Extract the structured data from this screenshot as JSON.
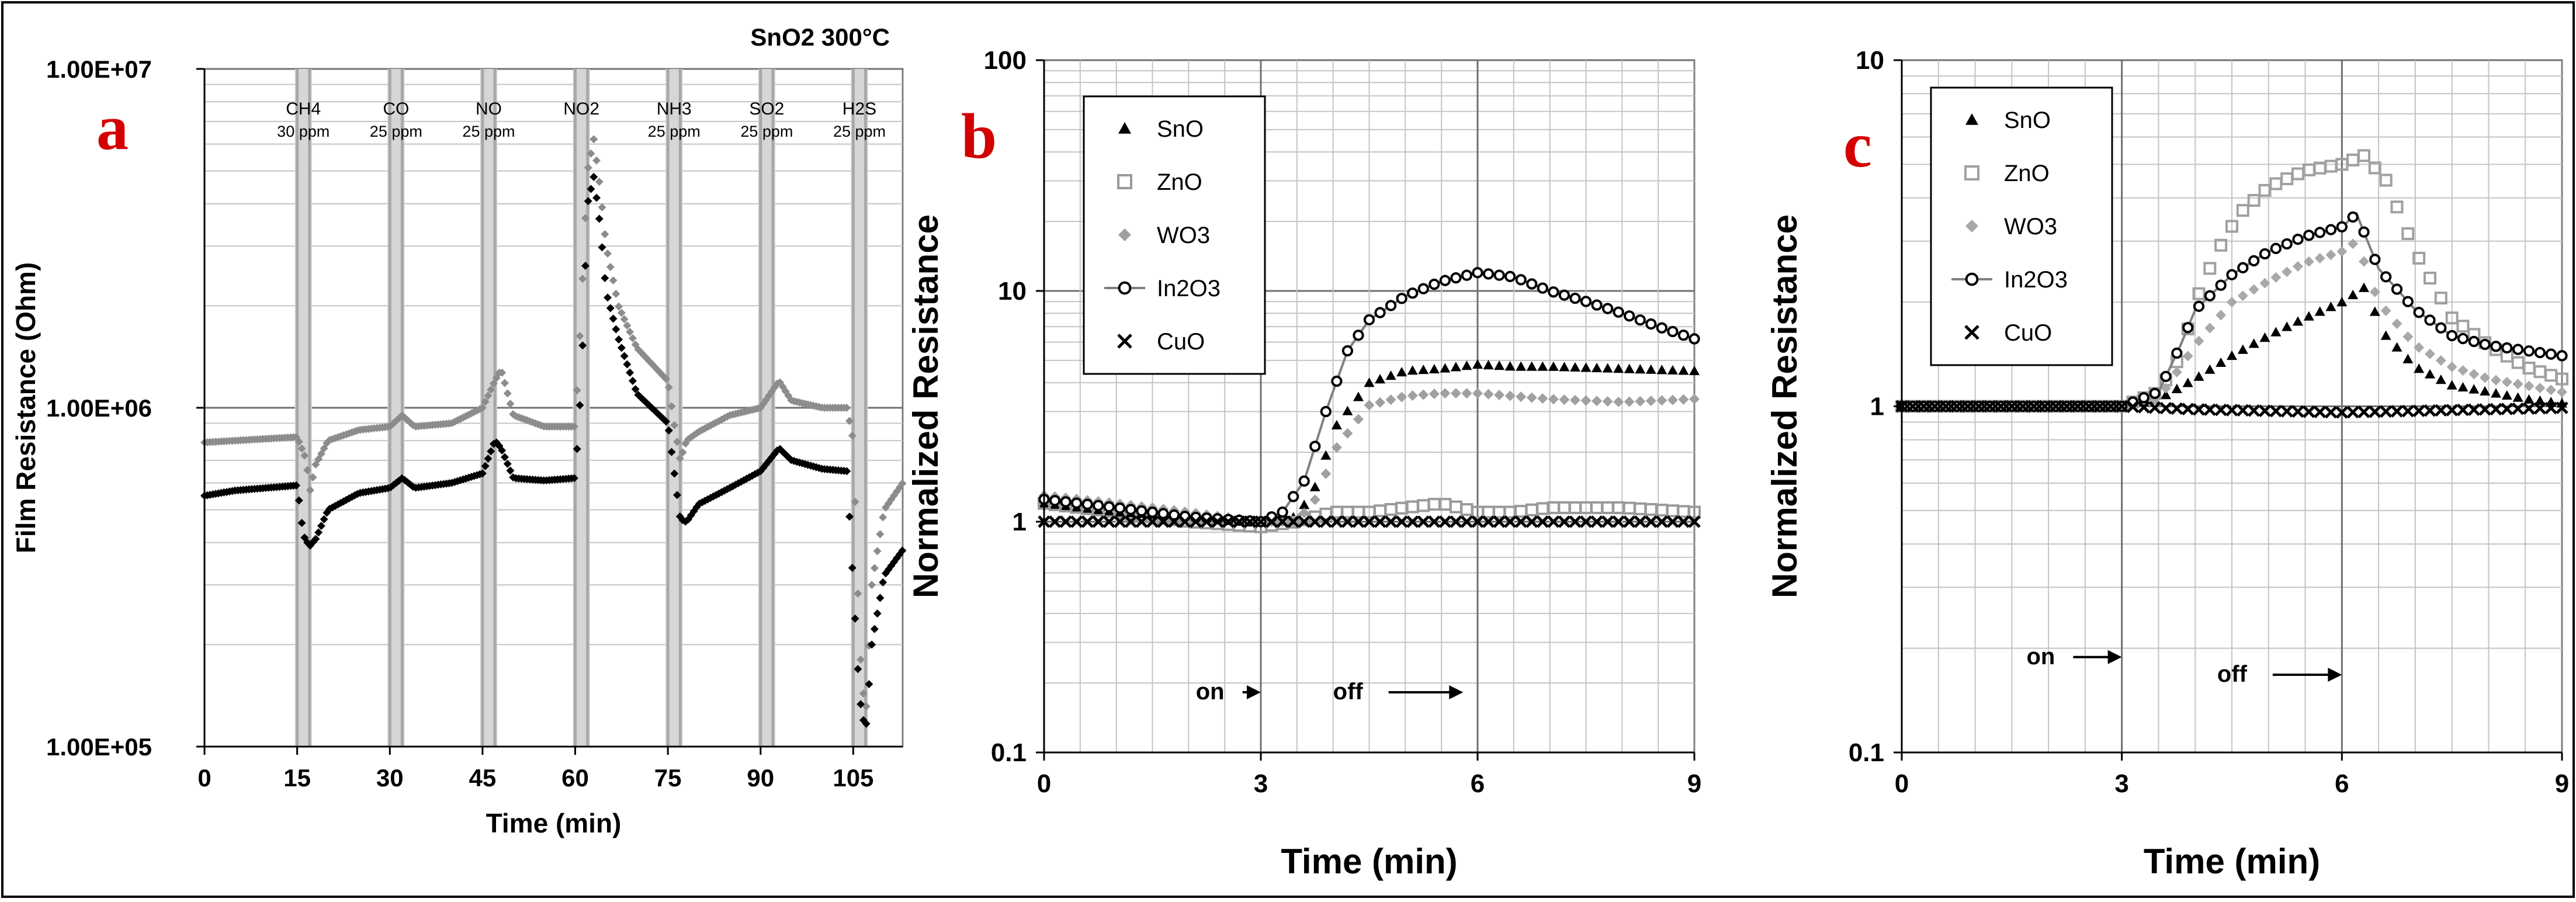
{
  "chart_data": [
    {
      "panel": "a",
      "type": "scatter",
      "title": "SnO2  300°C",
      "xlabel": "Time (min)",
      "ylabel": "Film Resistance (Ohm)",
      "xlim": [
        0,
        113
      ],
      "ylim": [
        100000,
        10000000
      ],
      "yscale": "log",
      "xticks": [
        0,
        15,
        30,
        45,
        60,
        75,
        90,
        105
      ],
      "xtick_labels": [
        "0",
        "15",
        "30",
        "45",
        "60",
        "75",
        "90",
        "105"
      ],
      "yticks": [
        100000,
        1000000,
        10000000
      ],
      "ytick_labels": [
        "1.00E+05",
        "1.00E+06",
        "1.00E+07"
      ],
      "gas_windows": [
        {
          "gas": "CH4",
          "conc": "30 ppm",
          "on": 15,
          "off": 17
        },
        {
          "gas": "CO",
          "conc": "25 ppm",
          "on": 30,
          "off": 32
        },
        {
          "gas": "NO",
          "conc": "25 ppm",
          "on": 45,
          "off": 47
        },
        {
          "gas": "NO2",
          "conc": "",
          "on": 60,
          "off": 62
        },
        {
          "gas": "NH3",
          "conc": "25 ppm",
          "on": 75,
          "off": 77
        },
        {
          "gas": "SO2",
          "conc": "25 ppm",
          "on": 90,
          "off": 92
        },
        {
          "gas": "H2S",
          "conc": "25 ppm",
          "on": 105,
          "off": 107
        }
      ],
      "series": [
        {
          "name": "upper curve",
          "color": "#8c8c8c",
          "marker": "diamond",
          "x": [
            0,
            5,
            10,
            15,
            16.5,
            17,
            18,
            20,
            25,
            30,
            32,
            34,
            40,
            45,
            47,
            48,
            50,
            55,
            60,
            61,
            62,
            63,
            64,
            65,
            67,
            70,
            75,
            76,
            77,
            78,
            80,
            85,
            90,
            93,
            95,
            100,
            104,
            105,
            106,
            107,
            108,
            110,
            113
          ],
          "y": [
            790000,
            800000,
            810000,
            820000,
            700000,
            560000,
            680000,
            800000,
            860000,
            880000,
            950000,
            880000,
            900000,
            1000000,
            1200000,
            1300000,
            950000,
            880000,
            880000,
            2000000,
            5000000,
            6200000,
            4500000,
            3000000,
            2000000,
            1500000,
            1200000,
            900000,
            700000,
            800000,
            850000,
            950000,
            1000000,
            1200000,
            1050000,
            1000000,
            1000000,
            800000,
            200000,
            120000,
            300000,
            500000,
            600000
          ]
        },
        {
          "name": "lower curve",
          "color": "#000000",
          "marker": "diamond",
          "x": [
            0,
            5,
            10,
            15,
            16,
            17,
            18,
            20,
            25,
            30,
            32,
            34,
            40,
            45,
            47,
            48,
            50,
            55,
            60,
            61,
            62,
            63,
            64,
            65,
            67,
            70,
            75,
            76,
            77,
            78,
            80,
            85,
            90,
            93,
            95,
            100,
            104,
            105,
            106,
            107,
            108,
            110,
            113
          ],
          "y": [
            550000,
            570000,
            580000,
            590000,
            420000,
            390000,
            410000,
            500000,
            560000,
            580000,
            620000,
            580000,
            600000,
            640000,
            800000,
            760000,
            620000,
            610000,
            620000,
            1200000,
            4000000,
            4800000,
            3500000,
            2200000,
            1600000,
            1100000,
            900000,
            650000,
            470000,
            460000,
            520000,
            580000,
            650000,
            760000,
            700000,
            660000,
            650000,
            300000,
            140000,
            110000,
            200000,
            320000,
            380000
          ]
        }
      ]
    },
    {
      "panel": "b",
      "type": "scatter",
      "xlabel": "Time (min)",
      "ylabel": "Normalized Resistance",
      "xlim": [
        0,
        9
      ],
      "ylim": [
        0.1,
        100
      ],
      "yscale": "log",
      "xticks": [
        0,
        3,
        6,
        9
      ],
      "xtick_labels": [
        "0",
        "3",
        "6",
        "9"
      ],
      "yticks": [
        0.1,
        1,
        10,
        100
      ],
      "ytick_labels": [
        "0.1",
        "1",
        "10",
        "100"
      ],
      "annotations": [
        {
          "text": "on",
          "x": 2.1,
          "y": 0.17,
          "arrow_to": 3.0
        },
        {
          "text": "off",
          "x": 4.0,
          "y": 0.17,
          "arrow_to": 5.8
        }
      ],
      "series": [
        {
          "name": "SnO",
          "color": "#000000",
          "marker": "triangle",
          "x": [
            0,
            1,
            2,
            3,
            3.5,
            3.8,
            4,
            4.5,
            5,
            5.5,
            6,
            6.5,
            7,
            8,
            9
          ],
          "y": [
            1.2,
            1.1,
            1.05,
            1.0,
            1.05,
            1.5,
            2.5,
            4.0,
            4.5,
            4.6,
            4.8,
            4.7,
            4.7,
            4.6,
            4.5
          ]
        },
        {
          "name": "ZnO",
          "color": "#9a9a9a",
          "marker": "square",
          "x": [
            0,
            1,
            2,
            3,
            3.5,
            4,
            4.5,
            5,
            5.5,
            6,
            6.5,
            7,
            8,
            9
          ],
          "y": [
            1.2,
            1.1,
            1.0,
            0.95,
            1.0,
            1.1,
            1.1,
            1.15,
            1.2,
            1.1,
            1.1,
            1.15,
            1.15,
            1.1
          ]
        },
        {
          "name": "WO3",
          "color": "#a0a0a0",
          "marker": "diamond",
          "x": [
            0,
            1,
            2,
            3,
            3.5,
            3.8,
            4,
            4.5,
            5,
            5.5,
            6,
            6.5,
            7,
            8,
            9
          ],
          "y": [
            1.3,
            1.2,
            1.1,
            1.0,
            1.0,
            1.3,
            2.0,
            3.2,
            3.5,
            3.6,
            3.6,
            3.5,
            3.4,
            3.3,
            3.4
          ]
        },
        {
          "name": "In2O3",
          "color": "#000000",
          "marker": "circle",
          "line": "#808080",
          "x": [
            0,
            1,
            2,
            3,
            3.3,
            3.6,
            3.9,
            4.2,
            4.5,
            5,
            5.5,
            6,
            6.5,
            7,
            7.5,
            8,
            8.5,
            9
          ],
          "y": [
            1.25,
            1.15,
            1.05,
            1.0,
            1.1,
            1.5,
            3.0,
            5.5,
            7.5,
            9.5,
            11,
            12,
            11.5,
            10,
            9,
            8,
            7,
            6.2
          ]
        },
        {
          "name": "CuO",
          "color": "#000000",
          "marker": "x",
          "x": [
            0,
            1,
            2,
            3,
            4,
            5,
            6,
            7,
            8,
            9
          ],
          "y": [
            1.0,
            1.0,
            1.0,
            1.0,
            1.0,
            1.0,
            1.0,
            1.0,
            1.0,
            1.0
          ]
        }
      ]
    },
    {
      "panel": "c",
      "type": "scatter",
      "xlabel": "Time (min)",
      "ylabel": "Normalized Resistance",
      "xlim": [
        0,
        9
      ],
      "ylim": [
        0.1,
        10
      ],
      "yscale": "log",
      "xticks": [
        0,
        3,
        6,
        9
      ],
      "xtick_labels": [
        "0",
        "3",
        "6",
        "9"
      ],
      "yticks": [
        0.1,
        1,
        10
      ],
      "ytick_labels": [
        "0.1",
        "1",
        "10"
      ],
      "annotations": [
        {
          "text": "on",
          "x": 1.7,
          "y": 0.18,
          "arrow_to": 3.0
        },
        {
          "text": "off",
          "x": 4.3,
          "y": 0.16,
          "arrow_to": 6.0
        }
      ],
      "series": [
        {
          "name": "SnO",
          "color": "#000000",
          "marker": "triangle",
          "x": [
            0,
            1,
            2,
            3,
            3.5,
            4,
            4.5,
            5,
            5.5,
            6,
            6.3,
            6.6,
            7,
            7.5,
            8,
            8.5,
            9
          ],
          "y": [
            1.0,
            1.0,
            1.0,
            1.0,
            1.05,
            1.2,
            1.4,
            1.6,
            1.8,
            2.0,
            2.2,
            1.6,
            1.3,
            1.15,
            1.1,
            1.05,
            1.02
          ]
        },
        {
          "name": "ZnO",
          "color": "#a0a0a0",
          "marker": "square",
          "x": [
            0,
            1,
            2,
            3,
            3.5,
            3.8,
            4,
            4.3,
            4.6,
            5,
            5.5,
            6,
            6.3,
            6.6,
            7,
            7.5,
            8,
            8.5,
            9
          ],
          "y": [
            1.0,
            1.0,
            1.0,
            1.0,
            1.1,
            1.4,
            2.0,
            2.8,
            3.6,
            4.3,
            4.8,
            5.0,
            5.3,
            4.5,
            2.8,
            1.8,
            1.5,
            1.3,
            1.2
          ]
        },
        {
          "name": "WO3",
          "color": "#a8a8a8",
          "marker": "diamond",
          "x": [
            0,
            1,
            2,
            3,
            3.5,
            4,
            4.5,
            5,
            5.5,
            6,
            6.2,
            6.5,
            7,
            7.5,
            8,
            8.5,
            9
          ],
          "y": [
            1.0,
            1.0,
            1.0,
            1.0,
            1.05,
            1.5,
            2.0,
            2.3,
            2.6,
            2.8,
            3.0,
            2.0,
            1.5,
            1.3,
            1.2,
            1.15,
            1.1
          ]
        },
        {
          "name": "In2O3",
          "color": "#000000",
          "marker": "circle",
          "line": "#808080",
          "x": [
            0,
            1,
            2,
            3,
            3.5,
            3.8,
            4,
            4.5,
            5,
            5.5,
            6,
            6.2,
            6.5,
            7,
            7.5,
            8,
            8.5,
            9
          ],
          "y": [
            1.0,
            1.0,
            1.0,
            1.0,
            1.1,
            1.5,
            1.9,
            2.4,
            2.8,
            3.1,
            3.3,
            3.6,
            2.5,
            1.9,
            1.6,
            1.5,
            1.45,
            1.4
          ]
        },
        {
          "name": "CuO",
          "color": "#000000",
          "marker": "x",
          "x": [
            0,
            1,
            2,
            3,
            4,
            5,
            6,
            7,
            8,
            9
          ],
          "y": [
            1.0,
            1.0,
            1.0,
            1.0,
            0.98,
            0.97,
            0.96,
            0.97,
            0.98,
            0.99
          ]
        }
      ]
    }
  ],
  "panel_letters": [
    "a",
    "b",
    "c"
  ]
}
